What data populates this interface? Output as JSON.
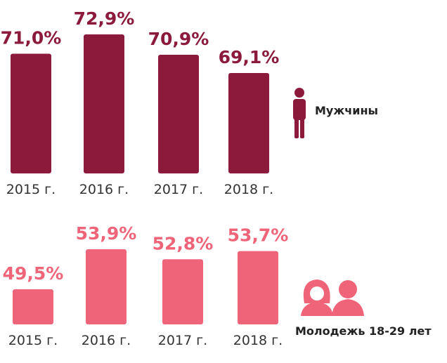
{
  "chart_data": [
    {
      "type": "bar",
      "label": "Мужчины",
      "color": "#8c1a3b",
      "categories": [
        "2015 г.",
        "2016 г.",
        "2017 г.",
        "2018 г."
      ],
      "values": [
        71.0,
        72.9,
        70.9,
        69.1
      ],
      "value_labels": [
        "71,0%",
        "72,9%",
        "70,9%",
        "69,1%"
      ]
    },
    {
      "type": "bar",
      "label": "Молодежь 18-29 лет",
      "color": "#f0647a",
      "categories": [
        "2015 г.",
        "2016 г.",
        "2017 г.",
        "2018 г."
      ],
      "values": [
        49.5,
        53.9,
        52.8,
        53.7
      ],
      "value_labels": [
        "49,5%",
        "53,9%",
        "52,8%",
        "53,7%"
      ]
    }
  ]
}
